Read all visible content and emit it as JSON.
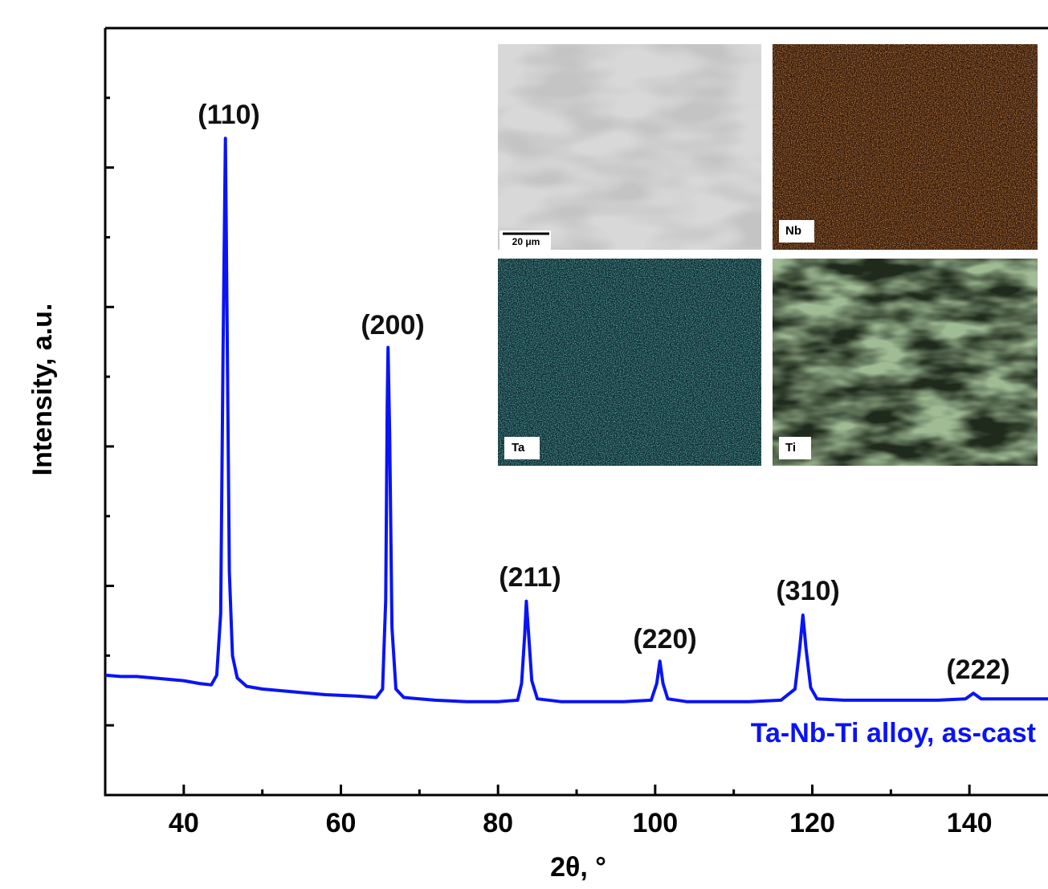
{
  "chart_data": {
    "type": "line",
    "x_label": "2θ, °",
    "y_label": "Intensity, a.u.",
    "xlim": [
      30,
      150
    ],
    "ylim": [
      0,
      5.5
    ],
    "xticks": [
      40,
      60,
      80,
      100,
      120,
      140
    ],
    "xminorticks": [
      50,
      70,
      90,
      110,
      130
    ],
    "yticks": [
      0.5,
      1,
      1.5,
      2,
      2.5,
      3,
      3.5,
      4,
      4.5,
      5
    ],
    "x": [
      30,
      32,
      34,
      36,
      38,
      40,
      42,
      43.5,
      44.2,
      44.7,
      45.0,
      45.3,
      45.5,
      45.8,
      46.2,
      46.8,
      48,
      50,
      54,
      58,
      62,
      64.5,
      65.3,
      65.7,
      65.9,
      66.0,
      66.2,
      66.5,
      67,
      68,
      72,
      76,
      80,
      82.5,
      83.0,
      83.4,
      83.6,
      83.9,
      84.3,
      85,
      88,
      92,
      96,
      99.5,
      100.2,
      100.6,
      101.0,
      101.6,
      104,
      108,
      112,
      116,
      117.8,
      118.4,
      118.8,
      119.2,
      119.8,
      120.6,
      124,
      128,
      132,
      136,
      139.5,
      140.5,
      141.5,
      145,
      150
    ],
    "series": [
      {
        "name": "Ta-Nb-Ti alloy, as-cast",
        "color": "#0a14f5",
        "values": [
          0.86,
          0.85,
          0.85,
          0.84,
          0.83,
          0.82,
          0.8,
          0.79,
          0.86,
          1.3,
          3.2,
          4.71,
          3.5,
          1.6,
          1.0,
          0.84,
          0.78,
          0.76,
          0.74,
          0.72,
          0.71,
          0.7,
          0.76,
          1.4,
          2.8,
          3.21,
          2.6,
          1.2,
          0.76,
          0.7,
          0.68,
          0.67,
          0.67,
          0.68,
          0.8,
          1.15,
          1.39,
          1.15,
          0.82,
          0.69,
          0.67,
          0.67,
          0.67,
          0.68,
          0.8,
          0.96,
          0.8,
          0.69,
          0.67,
          0.67,
          0.67,
          0.68,
          0.76,
          1.05,
          1.29,
          1.05,
          0.77,
          0.69,
          0.68,
          0.68,
          0.68,
          0.68,
          0.69,
          0.73,
          0.69,
          0.69,
          0.69
        ]
      }
    ],
    "annotations": [
      "(110)",
      "(200)",
      "(211)",
      "(220)",
      "(310)",
      "(222)"
    ]
  },
  "inset": {
    "scale_bar": "20 μm",
    "maps": [
      "Nb",
      "Ta",
      "Ti"
    ]
  }
}
